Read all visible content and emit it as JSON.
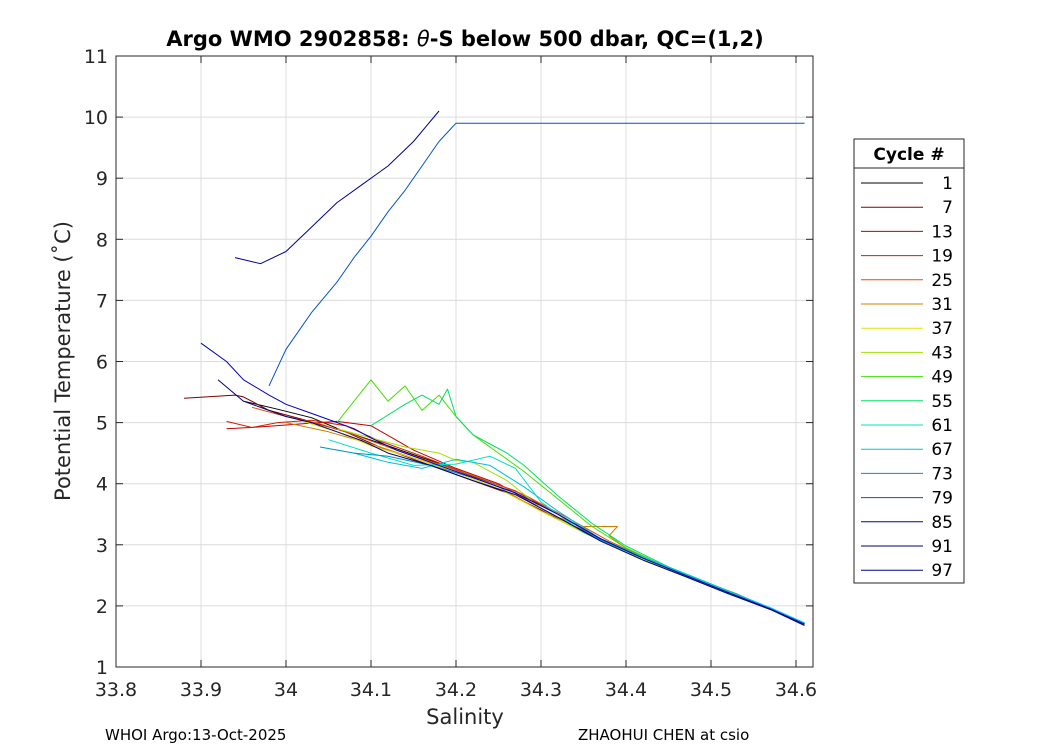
{
  "chart_data": {
    "type": "line",
    "title": "Argo WMO 2902858: θ-S below 500 dbar,  QC=(1,2)",
    "title_parts": {
      "prefix": "Argo WMO 2902858: ",
      "symbol": "θ",
      "suffix": "-S below 500 dbar,  QC=(1,2)"
    },
    "xlabel": "Salinity",
    "ylabel": "Potential Temperature (˚C)",
    "xlim": [
      33.8,
      34.62
    ],
    "ylim": [
      1,
      11
    ],
    "xticks": [
      33.8,
      33.9,
      34.0,
      34.1,
      34.2,
      34.3,
      34.4,
      34.5,
      34.6
    ],
    "xtick_labels": [
      "33.8",
      "33.9",
      "34",
      "34.1",
      "34.2",
      "34.3",
      "34.4",
      "34.5",
      "34.6"
    ],
    "yticks": [
      1,
      2,
      3,
      4,
      5,
      6,
      7,
      8,
      9,
      10,
      11
    ],
    "ytick_labels": [
      "1",
      "2",
      "3",
      "4",
      "5",
      "6",
      "7",
      "8",
      "9",
      "10",
      "11"
    ],
    "grid": true,
    "legend": {
      "title": "Cycle #",
      "placement": "right",
      "entries": [
        {
          "label": "1",
          "color": "#000000"
        },
        {
          "label": "7",
          "color": "#800000"
        },
        {
          "label": "13",
          "color": "#c00000"
        },
        {
          "label": "19",
          "color": "#d02000"
        },
        {
          "label": "25",
          "color": "#e05000"
        },
        {
          "label": "31",
          "color": "#d08000"
        },
        {
          "label": "37",
          "color": "#e0e000"
        },
        {
          "label": "43",
          "color": "#a0e000"
        },
        {
          "label": "49",
          "color": "#40e000"
        },
        {
          "label": "55",
          "color": "#00e060"
        },
        {
          "label": "61",
          "color": "#00e0c0"
        },
        {
          "label": "67",
          "color": "#00c0e0"
        },
        {
          "label": "73",
          "color": "#0090c0"
        },
        {
          "label": "79",
          "color": "#0050d0"
        },
        {
          "label": "85",
          "color": "#0000c0"
        },
        {
          "label": "91",
          "color": "#000080"
        },
        {
          "label": "97",
          "color": "#000090"
        }
      ]
    },
    "series": [
      {
        "name": "1",
        "color": "#000000",
        "x": [
          33.95,
          33.99,
          34.03,
          34.07,
          34.12,
          34.17,
          34.22,
          34.27,
          34.32,
          34.37,
          34.42,
          34.47,
          34.52,
          34.57,
          34.61
        ],
        "y": [
          5.35,
          5.22,
          5.08,
          4.85,
          4.62,
          4.38,
          4.12,
          3.88,
          3.5,
          3.1,
          2.78,
          2.5,
          2.22,
          1.95,
          1.7
        ]
      },
      {
        "name": "7",
        "color": "#800000",
        "x": [
          33.88,
          33.94,
          33.95,
          33.98,
          34.02,
          34.07,
          34.11,
          34.16,
          34.21,
          34.26,
          34.31,
          34.37,
          34.42,
          34.47,
          34.52,
          34.57,
          34.61
        ],
        "y": [
          5.4,
          5.45,
          5.42,
          5.2,
          5.05,
          4.85,
          4.6,
          4.35,
          4.1,
          3.85,
          3.5,
          3.1,
          2.78,
          2.5,
          2.22,
          1.95,
          1.7
        ]
      },
      {
        "name": "13",
        "color": "#c00000",
        "x": [
          33.93,
          33.97,
          34.02,
          34.06,
          34.1,
          34.15,
          34.2,
          34.25,
          34.3,
          34.36,
          34.42,
          34.47,
          34.52,
          34.57,
          34.61
        ],
        "y": [
          4.9,
          4.93,
          4.98,
          5.02,
          4.95,
          4.55,
          4.25,
          4.0,
          3.6,
          3.15,
          2.78,
          2.5,
          2.22,
          1.95,
          1.7
        ]
      },
      {
        "name": "19",
        "color": "#d02000",
        "x": [
          33.93,
          33.96,
          33.99,
          34.03,
          34.07,
          34.11,
          34.16,
          34.21,
          34.27,
          34.32,
          34.37,
          34.42,
          34.47,
          34.52,
          34.57,
          34.61
        ],
        "y": [
          5.02,
          4.92,
          5.0,
          5.04,
          4.95,
          4.7,
          4.45,
          4.18,
          3.88,
          3.5,
          3.1,
          2.78,
          2.5,
          2.22,
          1.95,
          1.7
        ]
      },
      {
        "name": "25",
        "color": "#e05000",
        "x": [
          33.96,
          34.0,
          34.04,
          34.08,
          34.13,
          34.18,
          34.23,
          34.28,
          34.33,
          34.38,
          34.43,
          34.48,
          34.53,
          34.57,
          34.61
        ],
        "y": [
          5.25,
          5.1,
          4.98,
          4.8,
          4.55,
          4.32,
          4.08,
          3.82,
          3.45,
          3.06,
          2.74,
          2.46,
          2.2,
          1.95,
          1.7
        ]
      },
      {
        "name": "31",
        "color": "#d08000",
        "x": [
          34.0,
          34.05,
          34.1,
          34.15,
          34.2,
          34.25,
          34.3,
          34.35,
          34.39,
          34.38,
          34.4,
          34.45,
          34.5,
          34.55,
          34.61
        ],
        "y": [
          5.0,
          4.85,
          4.65,
          4.42,
          4.2,
          3.95,
          3.55,
          3.3,
          3.3,
          3.15,
          2.95,
          2.62,
          2.35,
          2.07,
          1.72
        ]
      },
      {
        "name": "37",
        "color": "#e0e000",
        "x": [
          34.02,
          34.06,
          34.1,
          34.15,
          34.2,
          34.25,
          34.3,
          34.35,
          34.4,
          34.45,
          34.5,
          34.55,
          34.61
        ],
        "y": [
          5.02,
          4.85,
          4.62,
          4.42,
          4.18,
          3.92,
          3.55,
          3.2,
          2.88,
          2.6,
          2.33,
          2.06,
          1.72
        ]
      },
      {
        "name": "43",
        "color": "#a0e000",
        "x": [
          34.06,
          34.1,
          34.14,
          34.18,
          34.2,
          34.22,
          34.26,
          34.3,
          34.35,
          34.4,
          34.45,
          34.5,
          34.55,
          34.61
        ],
        "y": [
          4.9,
          4.75,
          4.6,
          4.5,
          4.38,
          4.35,
          4.05,
          3.6,
          3.2,
          2.88,
          2.6,
          2.33,
          2.06,
          1.72
        ]
      },
      {
        "name": "49",
        "color": "#40e000",
        "x": [
          34.06,
          34.1,
          34.12,
          34.14,
          34.16,
          34.18,
          34.2,
          34.22,
          34.25,
          34.28,
          34.32,
          34.36,
          34.4,
          34.45,
          34.5,
          34.55,
          34.61
        ],
        "y": [
          5.0,
          5.7,
          5.35,
          5.6,
          5.2,
          5.45,
          5.1,
          4.8,
          4.5,
          4.2,
          3.75,
          3.3,
          2.95,
          2.62,
          2.35,
          2.07,
          1.72
        ]
      },
      {
        "name": "55",
        "color": "#00e060",
        "x": [
          34.1,
          34.14,
          34.16,
          34.18,
          34.19,
          34.2,
          34.22,
          34.24,
          34.26,
          34.28,
          34.32,
          34.36,
          34.4,
          34.45,
          34.5,
          34.55,
          34.61
        ],
        "y": [
          4.95,
          5.3,
          5.45,
          5.3,
          5.55,
          5.1,
          4.8,
          4.65,
          4.5,
          4.3,
          3.8,
          3.35,
          2.98,
          2.64,
          2.36,
          2.08,
          1.72
        ]
      },
      {
        "name": "61",
        "color": "#00e0c0",
        "x": [
          34.05,
          34.1,
          34.15,
          34.2,
          34.24,
          34.27,
          34.3,
          34.35,
          34.4,
          34.45,
          34.5,
          34.55,
          34.61
        ],
        "y": [
          4.72,
          4.5,
          4.3,
          4.32,
          4.45,
          4.25,
          3.7,
          3.2,
          2.9,
          2.62,
          2.35,
          2.07,
          1.72
        ]
      },
      {
        "name": "67",
        "color": "#00c0e0",
        "x": [
          34.08,
          34.12,
          34.16,
          34.2,
          34.24,
          34.28,
          34.32,
          34.37,
          34.42,
          34.47,
          34.52,
          34.57,
          34.61
        ],
        "y": [
          4.5,
          4.35,
          4.25,
          4.4,
          4.3,
          3.95,
          3.55,
          3.1,
          2.8,
          2.52,
          2.24,
          1.97,
          1.72
        ]
      },
      {
        "name": "73",
        "color": "#0090c0",
        "x": [
          34.04,
          34.08,
          34.12,
          34.17,
          34.22,
          34.27,
          34.32,
          34.37,
          34.42,
          34.47,
          34.52,
          34.57,
          34.61
        ],
        "y": [
          4.6,
          4.5,
          4.45,
          4.3,
          4.1,
          3.85,
          3.5,
          3.08,
          2.78,
          2.5,
          2.22,
          1.95,
          1.7
        ]
      },
      {
        "name": "79",
        "color": "#0050d0",
        "x": [
          33.98,
          34.0,
          34.03,
          34.06,
          34.08,
          34.1,
          34.12,
          34.14,
          34.16,
          34.18,
          34.2,
          34.25,
          34.3,
          34.35,
          34.4,
          34.45,
          34.5,
          34.55,
          34.61
        ],
        "y": [
          5.6,
          6.2,
          6.8,
          7.3,
          7.7,
          8.05,
          8.45,
          8.8,
          9.2,
          9.6,
          9.9,
          9.9,
          9.9,
          9.9,
          9.9,
          9.9,
          9.9,
          9.9,
          9.9
        ]
      },
      {
        "name": "85",
        "color": "#0000c0",
        "x": [
          33.9,
          33.93,
          33.95,
          33.98,
          34.0,
          34.03,
          34.05,
          34.08,
          34.1,
          34.13,
          34.17,
          34.22,
          34.27,
          34.32,
          34.37,
          34.42,
          34.47,
          34.52,
          34.57,
          34.61
        ],
        "y": [
          6.3,
          6.0,
          5.7,
          5.45,
          5.3,
          5.15,
          5.05,
          4.9,
          4.75,
          4.55,
          4.35,
          4.1,
          3.85,
          3.5,
          3.1,
          2.78,
          2.5,
          2.22,
          1.95,
          1.7
        ]
      },
      {
        "name": "91",
        "color": "#000080",
        "x": [
          33.92,
          33.95,
          33.98,
          34.0,
          34.03,
          34.06,
          34.09,
          34.12,
          34.17,
          34.22,
          34.27,
          34.32,
          34.37,
          34.42,
          34.47,
          34.52,
          34.57,
          34.61
        ],
        "y": [
          5.7,
          5.35,
          5.2,
          5.1,
          5.0,
          4.85,
          4.7,
          4.5,
          4.3,
          4.05,
          3.82,
          3.45,
          3.06,
          2.75,
          2.48,
          2.2,
          1.94,
          1.68
        ]
      },
      {
        "name": "97",
        "color": "#000090",
        "x": [
          33.94,
          33.97,
          34.0,
          34.03,
          34.06,
          34.09,
          34.12,
          34.15,
          34.18
        ],
        "y": [
          7.7,
          7.6,
          7.8,
          8.2,
          8.6,
          8.9,
          9.2,
          9.6,
          10.1
        ]
      }
    ]
  },
  "footer": {
    "left": "WHOI Argo:13-Oct-2025",
    "right": "ZHAOHUI CHEN at csio"
  }
}
